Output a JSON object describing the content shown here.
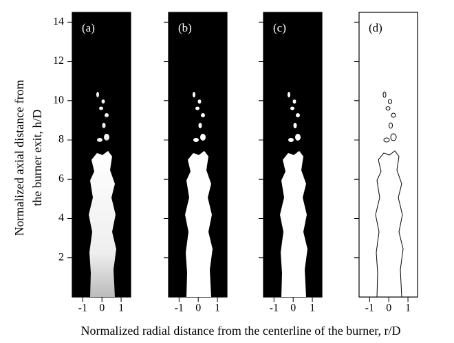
{
  "chart_data": {
    "type": "image-panels",
    "y_label": [
      "Normalized axial distance from",
      "the burner exit, h/D"
    ],
    "x_label": "Normalized radial distance from the centerline of the burner, r/D",
    "panels": [
      {
        "label": "(a)",
        "style": "grayscale"
      },
      {
        "label": "(b)",
        "style": "binary"
      },
      {
        "label": "(c)",
        "style": "binary"
      },
      {
        "label": "(d)",
        "style": "contour"
      }
    ],
    "xlim": [
      -1.55,
      1.5
    ],
    "xticks": [
      -1,
      0,
      1
    ],
    "ylim": [
      0,
      14.5
    ],
    "yticks": [
      2,
      4,
      6,
      8,
      10,
      12,
      14
    ]
  }
}
